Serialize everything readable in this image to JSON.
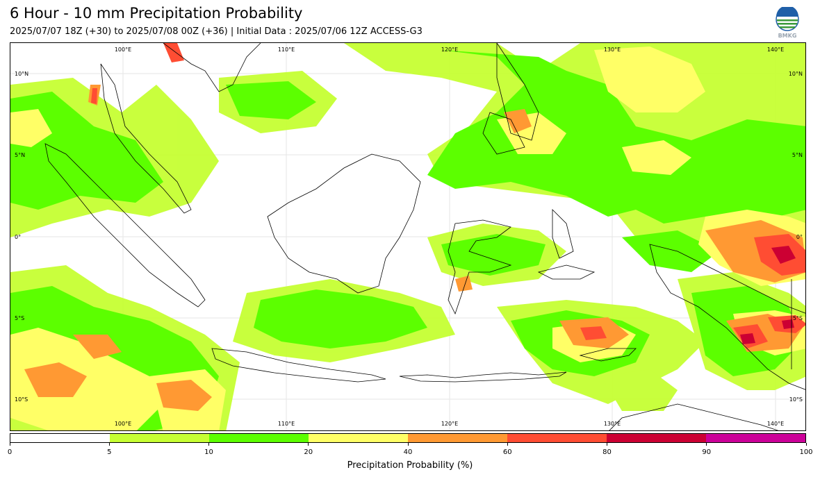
{
  "header": {
    "title": "6 Hour - 10 mm Precipitation Probability",
    "subtitle": "2025/07/07 18Z (+30) to 2025/07/08 00Z (+36) | Initial Data : 2025/07/06 12Z ACCESS-G3",
    "logo_text": "BMKG"
  },
  "map": {
    "lon_labels_top": [
      "100°E",
      "110°E",
      "120°E",
      "130°E",
      "140°E"
    ],
    "lon_labels_bottom": [
      "100°E",
      "110°E",
      "120°E",
      "130°E",
      "140°E"
    ],
    "lat_labels_left": [
      "10°N",
      "5°N",
      "0°",
      "5°S",
      "10°S"
    ],
    "lat_labels_right": [
      "10°N",
      "5°N",
      "0°",
      "5°S",
      "10°S"
    ]
  },
  "colorbar": {
    "label": "Precipitation Probability (%)",
    "ticks": [
      "0",
      "5",
      "10",
      "20",
      "40",
      "60",
      "80",
      "90",
      "100"
    ],
    "colors": [
      "#ffffff",
      "#c6ff33",
      "#5cff00",
      "#ffff66",
      "#ff9933",
      "#ff4d33",
      "#cc0033",
      "#cc0099"
    ]
  }
}
